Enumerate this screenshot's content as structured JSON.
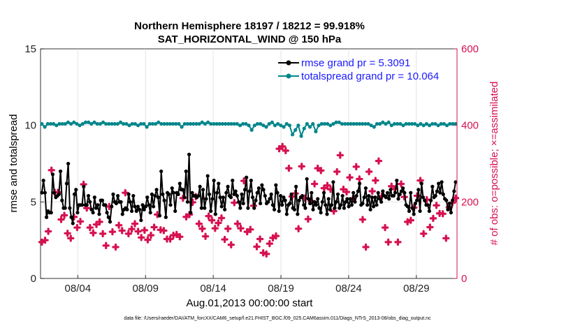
{
  "chart_data": {
    "type": "line",
    "title": "Northern Hemisphere 18197 / 18212 = 99.918%",
    "subtitle": "SAT_HORIZONTAL_WIND @ 150 hPa",
    "xlabel": "Aug.01,2013 00:00:00 start",
    "ylabel_left": "rmse and totalspread",
    "ylabel_right": "# of obs: o=possible; ×=assimilated",
    "footer": "data file: /Users/raeder/DAI/ATM_forcXX/CAM6_setup/f.e21.FHIST_BGC.f09_025.CAM6assim.011/Diags_NTrS_2013-08/obs_diag_output.nc",
    "x_ticks": [
      "08/04",
      "08/09",
      "08/14",
      "08/19",
      "08/24",
      "08/29"
    ],
    "x_tick_values": [
      4,
      9,
      14,
      19,
      24,
      29
    ],
    "xlim": [
      1.25,
      32.0
    ],
    "ylim_left": [
      0,
      15
    ],
    "y_ticks_left": [
      "0",
      "5",
      "10",
      "15"
    ],
    "ylim_right": [
      0,
      600
    ],
    "y_ticks_right": [
      "0",
      "200",
      "400",
      "600"
    ],
    "colors": {
      "rmse": "#000000",
      "spread": "#00868b",
      "obs": "#d6114f",
      "axis_right": "#d6114f",
      "legend_text": "#1a1aff"
    },
    "series": [
      {
        "name": "rmse grand pr = 5.3091",
        "axis": "left",
        "values": [
          5.6,
          6.4,
          5.6,
          4.0,
          4.4,
          4.3,
          4.3,
          6.8,
          5.6,
          5.3,
          5.4,
          5.5,
          7.0,
          5.1,
          4.6,
          4.6,
          6.2,
          7.5,
          4.6,
          4.0,
          3.6,
          5.5,
          5.8,
          4.3,
          4.8,
          4.8,
          4.8,
          6.0,
          4.8,
          4.8,
          5.4,
          5.0,
          4.5,
          4.3,
          5.3,
          4.6,
          4.8,
          4.2,
          5.1,
          5.1,
          4.8,
          4.8,
          4.3,
          4.0,
          3.7,
          4.7,
          5.5,
          5.0,
          4.9,
          5.4,
          5.0,
          5.0,
          4.2,
          4.5,
          4.6,
          4.5,
          5.5,
          5.0,
          4.4,
          5.4,
          4.7,
          4.4,
          4.7,
          4.5,
          3.8,
          4.8,
          4.5,
          4.7,
          5.3,
          4.8,
          4.3,
          5.5,
          4.7,
          5.4,
          5.8,
          5.3,
          4.1,
          7.0,
          5.5,
          5.1,
          4.0,
          5.6,
          5.5,
          4.8,
          5.9,
          5.6,
          4.4,
          5.6,
          5.5,
          6.2,
          5.8,
          5.8,
          5.3,
          7.0,
          5.0,
          8.1,
          4.3,
          5.6,
          5.4,
          5.4,
          5.3,
          5.4,
          6.0,
          4.6,
          5.8,
          4.6,
          5.2,
          6.7,
          5.5,
          4.4,
          5.2,
          6.4,
          4.2,
          5.6,
          6.2,
          5.3,
          4.7,
          5.3,
          4.5,
          5.6,
          6.0,
          5.4,
          5.3,
          6.4,
          5.5,
          5.7,
          5.4,
          5.0,
          4.6,
          5.5,
          4.9,
          5.8,
          6.6,
          4.6,
          5.7,
          6.4,
          5.3,
          4.6,
          5.1,
          5.6,
          5.9,
          4.9,
          6.1,
          5.8,
          5.4,
          4.9,
          5.0,
          5.2,
          5.5,
          4.8,
          4.5,
          6.1,
          5.6,
          4.4,
          5.4,
          4.8,
          5.3,
          5.1,
          4.2,
          4.8,
          4.9,
          5.5,
          4.6,
          4.5,
          6.0,
          4.2,
          5.1,
          5.3,
          5.4,
          4.8,
          4.6,
          6.5,
          5.2,
          4.9,
          5.6,
          4.5,
          5.0,
          4.8,
          5.2,
          4.6,
          4.3,
          5.0,
          5.6,
          4.8,
          4.2,
          5.2,
          4.5,
          4.8,
          6.3,
          4.6,
          5.0,
          5.5,
          4.6,
          4.8,
          5.4,
          4.6,
          5.0,
          5.2,
          4.7,
          5.2,
          4.8,
          5.6,
          5.0,
          5.4,
          5.7,
          6.2,
          4.8,
          4.9,
          5.3,
          5.9,
          4.8,
          5.4,
          4.5,
          5.3,
          4.7,
          5.3,
          4.8,
          5.6,
          5.2,
          5.0,
          5.7,
          5.4,
          5.3,
          5.6,
          5.2,
          5.8,
          5.4,
          5.4,
          5.6,
          6.4,
          5.2,
          5.5,
          5.7,
          5.9,
          5.6,
          4.8,
          4.7,
          4.4,
          5.6,
          4.6,
          4.2,
          4.9,
          5.1,
          5.8,
          4.4,
          6.2,
          5.3,
          5.1,
          4.8,
          4.8,
          4.4,
          5.1,
          6.0,
          5.3,
          5.4,
          5.7,
          6.2,
          5.6,
          6.3,
          5.5,
          5.2,
          5.1,
          4.5,
          4.9,
          4.3,
          5.1,
          5.7,
          6.3
        ]
      },
      {
        "name": "totalspread grand pr = 10.064",
        "axis": "left",
        "values": [
          10.1,
          9.9,
          10.1,
          10.1,
          10.1,
          10.0,
          10.1,
          10.1,
          10.1,
          10.2,
          10.1,
          10.2,
          10.1,
          10.0,
          10.1,
          10.2,
          10.2,
          10.1,
          10.2,
          10.1,
          10.1,
          10.2,
          10.1,
          10.1,
          10.1,
          10.1,
          10.1,
          10.2,
          10.1,
          10.1,
          10.0,
          10.1,
          10.1,
          10.0,
          10.1,
          10.1,
          9.9,
          10.1,
          10.1,
          10.1,
          10.2,
          10.1,
          10.1,
          10.1,
          10.1,
          10.1,
          10.1,
          10.1,
          9.9,
          10.1,
          10.1,
          10.1,
          10.1,
          10.1,
          10.1,
          10.2,
          10.1,
          10.2,
          10.1,
          10.1,
          10.1,
          10.1,
          10.1,
          10.1,
          10.1,
          10.1,
          10.1,
          10.1,
          10.0,
          10.1,
          10.1,
          10.0,
          9.7,
          10.0,
          10.1,
          10.1,
          10.0,
          9.9,
          10.1,
          10.2,
          10.0,
          10.1,
          10.0,
          9.9,
          10.1,
          10.0,
          9.4,
          9.7,
          10.0,
          9.3,
          9.8,
          10.1,
          9.9,
          10.1,
          9.6,
          10.0,
          10.1,
          10.1,
          10.1,
          10.0,
          10.1,
          10.2,
          10.2,
          10.1,
          10.1,
          10.1,
          10.1,
          10.1,
          10.1,
          10.1,
          10.1,
          10.1,
          10.1,
          10.0,
          9.9,
          10.1,
          10.1,
          10.2,
          10.1,
          10.2,
          10.0,
          10.1,
          10.1,
          10.1,
          10.0,
          10.1,
          10.1,
          10.1,
          10.1,
          10.0,
          10.1,
          10.0,
          10.1,
          10.0,
          10.1,
          10.1,
          10.0,
          10.1,
          10.1,
          10.0,
          10.1,
          10.1,
          10.1
        ]
      },
      {
        "name": "obs assimilated",
        "axis": "right",
        "values": [
          95,
          100,
          123,
          283,
          225,
          225,
          154,
          165,
          118,
          105,
          161,
          133,
          149,
          246,
          184,
          133,
          119,
          141,
          148,
          117,
          86,
          188,
          122,
          82,
          139,
          125,
          224,
          117,
          129,
          143,
          123,
          107,
          126,
          101,
          113,
          134,
          167,
          127,
          125,
          103,
          103,
          113,
          115,
          109,
          210,
          161,
          167,
          199,
          214,
          143,
          130,
          110,
          163,
          152,
          131,
          145,
          158,
          102,
          130,
          88,
          198,
          143,
          131,
          255,
          122,
          128,
          190,
          83,
          103,
          67,
          64,
          91,
          106,
          111,
          339,
          345,
          334,
          288,
          214,
          222,
          130,
          293,
          210,
          155,
          202,
          247,
          288,
          282,
          236,
          243,
          233,
          176,
          279,
          322,
          233,
          226,
          264,
          209,
          292,
          260,
          154,
          82,
          279,
          228,
          256,
          307,
          215,
          133,
          95,
          241,
          234,
          95,
          247,
          213,
          148,
          152,
          185,
          216,
          256,
          117,
          206,
          134,
          157,
          191,
          170,
          169,
          105,
          186,
          198,
          210
        ]
      }
    ],
    "legend_position": "top-right"
  }
}
